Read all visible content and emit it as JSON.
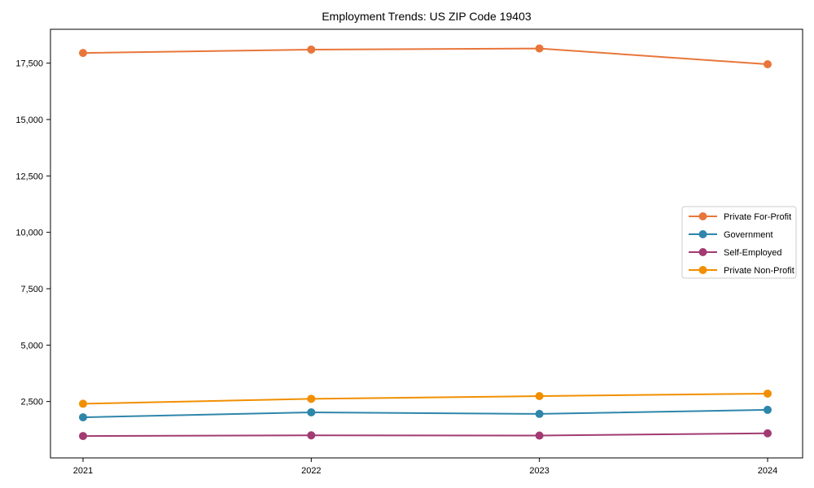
{
  "page": {
    "background": "#ffffff"
  },
  "chart_data": {
    "type": "line",
    "title": "Employment Trends: US ZIP Code 19403",
    "x_labels": [
      "2021",
      "2022",
      "2023",
      "2024"
    ],
    "series": [
      {
        "name": "Private For-Profit",
        "color": "#E8763B",
        "values": [
          17950,
          18100,
          18150,
          17450
        ]
      },
      {
        "name": "Government",
        "color": "#2E86AB",
        "values": [
          1800,
          2020,
          1950,
          2130
        ]
      },
      {
        "name": "Self-Employed",
        "color": "#A23B72",
        "values": [
          970,
          1000,
          990,
          1090
        ]
      },
      {
        "name": "Private Non-Profit",
        "color": "#F18F01",
        "values": [
          2400,
          2620,
          2740,
          2850
        ]
      }
    ],
    "ylim": [
      0,
      19000
    ],
    "yticks": [
      2500,
      5000,
      7500,
      10000,
      12500,
      15000,
      17500
    ],
    "ytick_labels": [
      "2,500",
      "5,000",
      "7,500",
      "10,000",
      "12,500",
      "15,000",
      "17,500"
    ],
    "grid": false,
    "legend_position": "center-right",
    "marker": "circle",
    "axis_color": "#000000",
    "legend_border_color": "#cccccc",
    "tick_label_color": "#000000"
  }
}
